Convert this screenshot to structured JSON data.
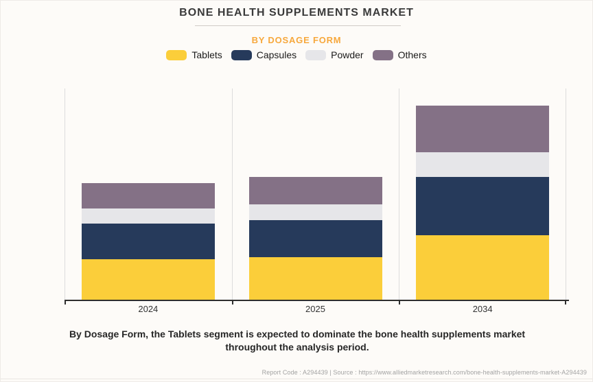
{
  "header": {
    "title": "BONE HEALTH SUPPLEMENTS MARKET",
    "subtitle": "BY DOSAGE FORM"
  },
  "chart_data": {
    "type": "bar",
    "stacked": true,
    "title": "BONE HEALTH SUPPLEMENTS MARKET",
    "subtitle": "BY DOSAGE FORM",
    "categories": [
      "2024",
      "2025",
      "2034"
    ],
    "series": [
      {
        "name": "Tablets",
        "color": "#fbce3a",
        "values": [
          60,
          63,
          95
        ]
      },
      {
        "name": "Capsules",
        "color": "#263a5b",
        "values": [
          52,
          54,
          85
        ]
      },
      {
        "name": "Powder",
        "color": "#e6e6e9",
        "values": [
          22,
          23,
          36
        ]
      },
      {
        "name": "Others",
        "color": "#847186",
        "values": [
          37,
          40,
          68
        ]
      }
    ],
    "value_units": "relative segment height (no value axis shown in chart)",
    "xlabel": "",
    "ylabel": "",
    "legend_position": "top",
    "grid": "vertical category separators only",
    "axis_color": "#2e2e2e",
    "gridline_color": "#dcdcdc"
  },
  "caption": {
    "lines": [
      "By Dosage Form, the Tablets segment is expected to dominate the bone health supplements market",
      "throughout the analysis period."
    ]
  },
  "footer": {
    "text": "Report Code : A294439  |  Source : https://www.alliedmarketresearch.com/bone-health-supplements-market-A294439"
  }
}
